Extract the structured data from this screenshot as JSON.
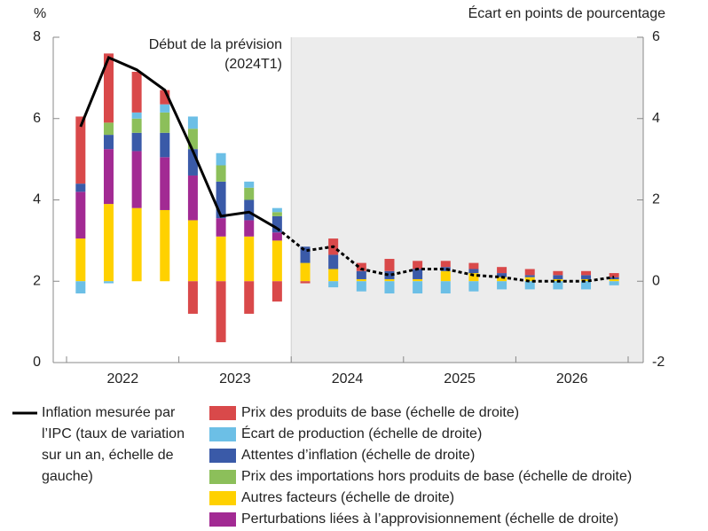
{
  "chart_data": {
    "type": "bar",
    "y_label": "%",
    "y2_label": "Écart en points de pourcentage",
    "annotation": [
      "Début de la prévision",
      "(2024T1)"
    ],
    "forecast_start": 8,
    "categories": [
      null,
      null,
      null,
      null,
      null,
      null,
      null,
      null,
      null,
      null,
      null,
      null,
      null,
      null,
      null,
      null,
      null,
      null,
      null,
      null
    ],
    "year_labels": [
      "2022",
      "2023",
      "2024",
      "2025",
      "2026"
    ],
    "ylim": [
      0,
      8
    ],
    "yticks": [
      0,
      2,
      4,
      6,
      8
    ],
    "y2lim": [
      -2,
      6
    ],
    "y2ticks": [
      -2,
      0,
      2,
      4,
      6
    ],
    "line": {
      "name": "Inflation mesurée par l’IPC (taux de variation sur un an, échelle de gauche)",
      "color": "#000000",
      "values": [
        5.8,
        7.5,
        7.2,
        6.7,
        5.2,
        3.6,
        3.7,
        3.3,
        2.75,
        2.85,
        2.3,
        2.15,
        2.3,
        2.3,
        2.15,
        2.1,
        2.0,
        2.0,
        2.0,
        2.1
      ]
    },
    "series": [
      {
        "name": "Prix des produits de base (échelle de droite)",
        "color": "#d9494a",
        "axis": "y2",
        "values": [
          1.65,
          1.7,
          1.0,
          0.35,
          -0.8,
          -1.5,
          -0.8,
          -0.5,
          -0.05,
          0.4,
          0.2,
          0.3,
          0.2,
          0.15,
          0.15,
          0.15,
          0.15,
          0.1,
          0.1,
          0.1
        ]
      },
      {
        "name": "Écart de production (échelle de droite)",
        "color": "#6cbfe6",
        "axis": "y2",
        "values": [
          -0.3,
          -0.05,
          0.15,
          0.2,
          0.3,
          0.3,
          0.15,
          0.1,
          0,
          -0.15,
          -0.25,
          -0.3,
          -0.3,
          -0.3,
          -0.25,
          -0.2,
          -0.2,
          -0.2,
          -0.2,
          -0.1
        ]
      },
      {
        "name": "Attentes d’inflation (échelle de droite)",
        "color": "#3a5aa8",
        "axis": "y2",
        "values": [
          0.2,
          0.35,
          0.45,
          0.6,
          0.65,
          0.9,
          0.5,
          0.4,
          0.4,
          0.35,
          0.2,
          0.2,
          0.25,
          0.1,
          0.1,
          0.1,
          0.05,
          0.1,
          0.1,
          0.05
        ]
      },
      {
        "name": "Prix des importations hors produits de base (échelle de droite)",
        "color": "#8cbf5a",
        "axis": "y2",
        "values": [
          0,
          0.3,
          0.35,
          0.5,
          0.5,
          0.4,
          0.3,
          0.1,
          0,
          0,
          0,
          0,
          0,
          0,
          0,
          0,
          0,
          0,
          0,
          0
        ]
      },
      {
        "name": "Autres facteurs (échelle de droite)",
        "color": "#ffd100",
        "axis": "y2",
        "values": [
          1.05,
          1.9,
          1.8,
          1.75,
          1.5,
          1.1,
          1.1,
          1.0,
          0.45,
          0.3,
          0.05,
          0.05,
          0.05,
          0.25,
          0.2,
          0.1,
          0.1,
          0.05,
          0.05,
          0.05
        ]
      },
      {
        "name": "Perturbations liées à l’approvisionnement (échelle de droite)",
        "color": "#a22a93",
        "axis": "y2",
        "values": [
          1.15,
          1.35,
          1.4,
          1.3,
          1.1,
          0.45,
          0.4,
          0.2,
          0,
          0,
          0,
          0,
          0,
          0,
          0,
          0,
          0,
          0,
          0,
          0
        ]
      }
    ]
  }
}
